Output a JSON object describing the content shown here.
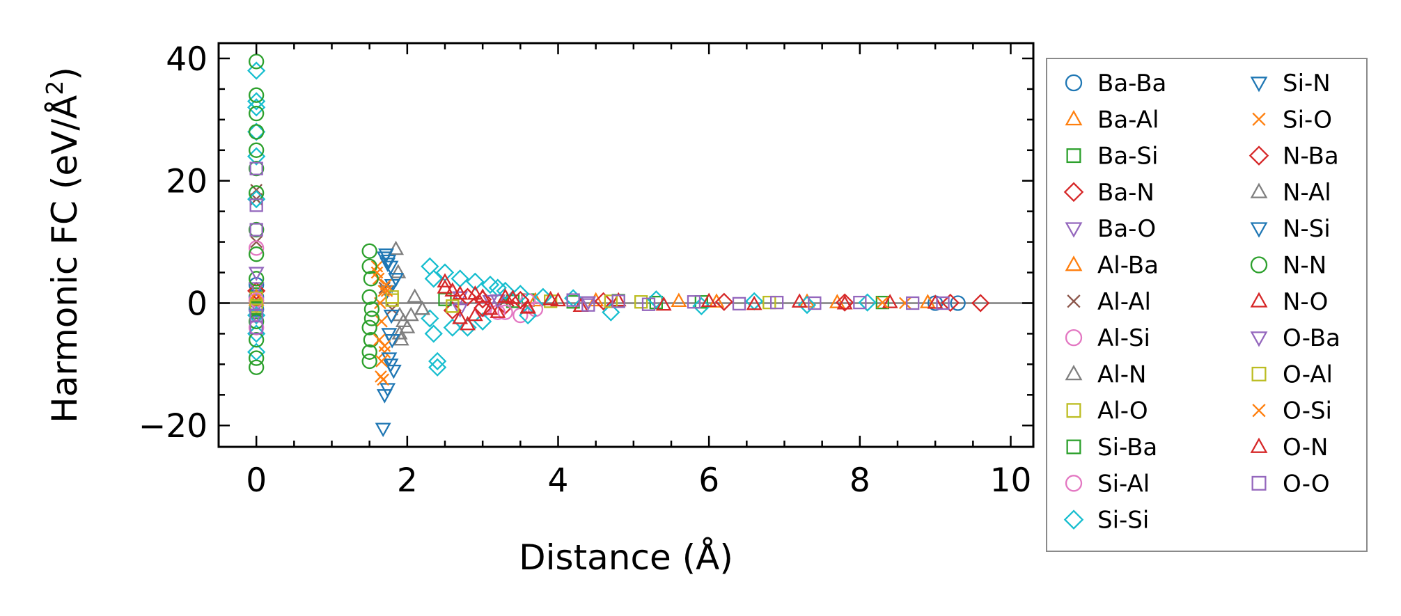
{
  "chart_data": {
    "type": "scatter",
    "title": "",
    "xlabel": "Distance (Å)",
    "ylabel_main": "Harmonic FC (eV/Å",
    "ylabel_sup": "2",
    "ylabel_tail": ")",
    "xlim": [
      -0.5,
      10.3
    ],
    "ylim": [
      -23.5,
      42.5
    ],
    "xticks": [
      0,
      2,
      4,
      6,
      8,
      10
    ],
    "xtick_labels": [
      "0",
      "2",
      "4",
      "6",
      "8",
      "10"
    ],
    "yticks": [
      -20,
      0,
      20,
      40
    ],
    "ytick_labels": [
      "−20",
      "0",
      "20",
      "40"
    ],
    "reference_line_y": 0,
    "grid": false,
    "legend_position": "outside-right",
    "legend_columns": 2,
    "series": [
      {
        "name": "Ba-Ba",
        "marker": "circle",
        "color": "#1f77b4",
        "x": [
          0,
          0,
          0,
          9.0,
          9.3
        ],
        "y": [
          3,
          -1,
          1,
          0,
          0
        ]
      },
      {
        "name": "Ba-Al",
        "marker": "triangle-up",
        "color": "#ff7f0e",
        "x": [
          0,
          3.9,
          4.5,
          5.6,
          7.3,
          8.9
        ],
        "y": [
          0.5,
          0.6,
          0.4,
          0.3,
          0.2,
          0.1
        ]
      },
      {
        "name": "Ba-Si",
        "marker": "square",
        "color": "#2ca02c",
        "x": [
          0,
          0,
          3.6,
          4.8,
          5.9,
          8.3
        ],
        "y": [
          1.5,
          -1.5,
          0.5,
          0.4,
          0.2,
          0.1
        ]
      },
      {
        "name": "Ba-N",
        "marker": "diamond",
        "color": "#d62728",
        "x": [
          0,
          2.6,
          2.8,
          3.0,
          3.3
        ],
        "y": [
          2,
          -1.2,
          1,
          0.6,
          -0.4
        ]
      },
      {
        "name": "Ba-O",
        "marker": "triangle-down",
        "color": "#9467bd",
        "x": [
          0,
          0,
          0,
          2.7,
          3.1
        ],
        "y": [
          -0.5,
          2.5,
          -2,
          1,
          0.4
        ]
      },
      {
        "name": "Al-Ba",
        "marker": "triangle-up",
        "color": "#ff7f0e",
        "x": [
          0,
          3.7,
          6.1,
          7.7
        ],
        "y": [
          1,
          0.4,
          0.2,
          0.1
        ]
      },
      {
        "name": "Al-Al",
        "marker": "x",
        "color": "#8c564b",
        "x": [
          0,
          0,
          0,
          1.7,
          1.8,
          3.3
        ],
        "y": [
          18.5,
          17,
          10,
          2.5,
          -1,
          0.5
        ]
      },
      {
        "name": "Al-Si",
        "marker": "circle",
        "color": "#e377c2",
        "x": [
          0,
          0,
          0,
          3.2,
          3.5,
          3.7
        ],
        "y": [
          12,
          -4,
          9,
          -1.5,
          -2,
          -1
        ]
      },
      {
        "name": "Al-N",
        "marker": "triangle-up",
        "color": "#7f7f7f",
        "x": [
          1.85,
          1.88,
          1.9,
          1.92,
          2.0,
          2.2
        ],
        "y": [
          8.8,
          5,
          -2,
          -6,
          -4,
          -1
        ]
      },
      {
        "name": "Al-O",
        "marker": "square",
        "color": "#bcbd22",
        "x": [
          0,
          1.8,
          2.6,
          3.9,
          5.1
        ],
        "y": [
          0.8,
          0.5,
          -0.5,
          0.3,
          0.2
        ]
      },
      {
        "name": "Si-Ba",
        "marker": "square",
        "color": "#2ca02c",
        "x": [
          0,
          2.5,
          3.4,
          4.2,
          5.3
        ],
        "y": [
          -0.8,
          0.6,
          0.3,
          0.2,
          0.1
        ]
      },
      {
        "name": "Si-Al",
        "marker": "circle",
        "color": "#e377c2",
        "x": [
          0,
          3.0,
          3.3,
          3.6
        ],
        "y": [
          0.5,
          -1,
          -1.5,
          0.4
        ]
      },
      {
        "name": "Si-Si",
        "marker": "diamond",
        "color": "#17becf",
        "x": [
          0,
          0,
          0,
          0,
          0,
          0,
          0,
          0,
          0,
          2.3,
          2.35,
          2.35,
          2.4,
          2.4,
          2.3,
          2.5,
          2.7,
          2.9,
          3.1,
          3.2,
          3.3,
          3.0,
          2.6,
          2.8,
          3.5,
          3.6,
          3.8,
          4.2,
          4.7,
          5.3,
          5.9,
          6.6,
          7.3,
          8.1
        ],
        "y": [
          38,
          33,
          32,
          28,
          24,
          17,
          -2,
          -5,
          -8,
          6,
          4,
          -5,
          -9.5,
          -10.5,
          -2.5,
          5,
          4,
          3.5,
          3,
          2.5,
          2,
          -3,
          -4,
          -4,
          1.5,
          -2,
          1,
          0.8,
          -1.5,
          0.6,
          -0.5,
          0.3,
          -0.3,
          0.1
        ]
      },
      {
        "name": "Si-N",
        "marker": "triangle-down",
        "color": "#1f77b4",
        "x": [
          1.68,
          1.72,
          1.75,
          1.78,
          1.8,
          1.7,
          1.74,
          1.78,
          1.82,
          1.76,
          1.73,
          1.79
        ],
        "y": [
          -20.5,
          8,
          7,
          6,
          3,
          -15,
          -14,
          -10,
          -11,
          -5,
          2,
          -2
        ]
      },
      {
        "name": "Si-O",
        "marker": "x",
        "color": "#ff7f0e",
        "x": [
          1.6,
          1.62,
          1.65,
          1.68,
          1.7,
          1.72,
          1.64,
          1.66,
          1.69
        ],
        "y": [
          6,
          4,
          -12,
          -12.5,
          -8,
          3,
          0,
          -3,
          2
        ]
      },
      {
        "name": "N-Ba",
        "marker": "diamond",
        "color": "#d62728",
        "x": [
          2.8,
          3.0,
          3.5,
          4.6,
          6.2,
          7.8,
          9.2,
          9.6
        ],
        "y": [
          1,
          -0.8,
          0.5,
          0.3,
          0.2,
          0.1,
          0.05,
          0
        ]
      },
      {
        "name": "N-Al",
        "marker": "triangle-up",
        "color": "#7f7f7f",
        "x": [
          1.9,
          1.95,
          2.05,
          2.1,
          2.2
        ],
        "y": [
          -5,
          -3,
          -2,
          1,
          -1
        ]
      },
      {
        "name": "N-Si",
        "marker": "triangle-down",
        "color": "#1f77b4",
        "x": [
          1.7,
          1.74,
          1.76,
          1.8,
          1.85
        ],
        "y": [
          7.5,
          6.5,
          -9,
          -6,
          4
        ]
      },
      {
        "name": "N-N",
        "marker": "circle",
        "color": "#2ca02c",
        "x": [
          0,
          0,
          0,
          0,
          0,
          0,
          0,
          0,
          0,
          0,
          0,
          0,
          0,
          0,
          1.5,
          1.5,
          1.52,
          1.5,
          1.53,
          1.5,
          1.52,
          1.5,
          1.5,
          1.53
        ],
        "y": [
          39.5,
          34,
          31,
          28,
          25,
          22,
          18,
          12,
          8,
          4,
          -3,
          -6,
          -9,
          -10.5,
          8.5,
          6,
          4,
          1,
          -1,
          -4,
          -6,
          -8,
          -9.5,
          -2.5
        ]
      },
      {
        "name": "N-O",
        "marker": "triangle-up",
        "color": "#d62728",
        "x": [
          2.5,
          2.6,
          2.7,
          2.8,
          2.9,
          3.0,
          3.2,
          3.4,
          3.6,
          3.9,
          4.3,
          4.8,
          5.4,
          6.0,
          6.6,
          7.2,
          7.8,
          8.4,
          9.0
        ],
        "y": [
          3.5,
          2,
          1.5,
          -3.5,
          -2,
          1,
          -1.5,
          0.8,
          -0.8,
          0.6,
          -0.5,
          0.4,
          -0.3,
          0.3,
          -0.2,
          0.2,
          -0.1,
          0.1,
          0
        ]
      },
      {
        "name": "O-Ba",
        "marker": "triangle-down",
        "color": "#9467bd",
        "x": [
          0,
          2.7,
          3.2,
          4.4
        ],
        "y": [
          5,
          -1,
          0.5,
          0.2
        ]
      },
      {
        "name": "O-Al",
        "marker": "square",
        "color": "#bcbd22",
        "x": [
          0,
          1.8,
          2.6,
          4.7,
          6.8
        ],
        "y": [
          -0.5,
          1,
          -0.5,
          0.3,
          0.1
        ]
      },
      {
        "name": "O-Si",
        "marker": "x",
        "color": "#ff7f0e",
        "x": [
          1.6,
          1.63,
          1.66,
          1.7,
          1.73,
          8.3,
          8.6
        ],
        "y": [
          5,
          -6,
          -9.5,
          -7,
          2,
          0.1,
          0
        ]
      },
      {
        "name": "O-N",
        "marker": "triangle-up",
        "color": "#d62728",
        "x": [
          2.5,
          2.7,
          2.9,
          3.1,
          3.3,
          3.6,
          4.0
        ],
        "y": [
          2.5,
          -2.5,
          1.5,
          -1,
          1,
          -0.7,
          0.4
        ]
      },
      {
        "name": "O-O",
        "marker": "square",
        "color": "#9467bd",
        "x": [
          0,
          0,
          0,
          0,
          0,
          4.2,
          4.4,
          4.8,
          5.2,
          5.8,
          6.4,
          6.9,
          7.4,
          8.0,
          8.7,
          9.1
        ],
        "y": [
          22,
          16,
          12,
          -2,
          -4,
          0.5,
          -0.3,
          0.3,
          -0.2,
          0.2,
          -0.1,
          0.1,
          0,
          0.1,
          0,
          0
        ]
      }
    ]
  }
}
